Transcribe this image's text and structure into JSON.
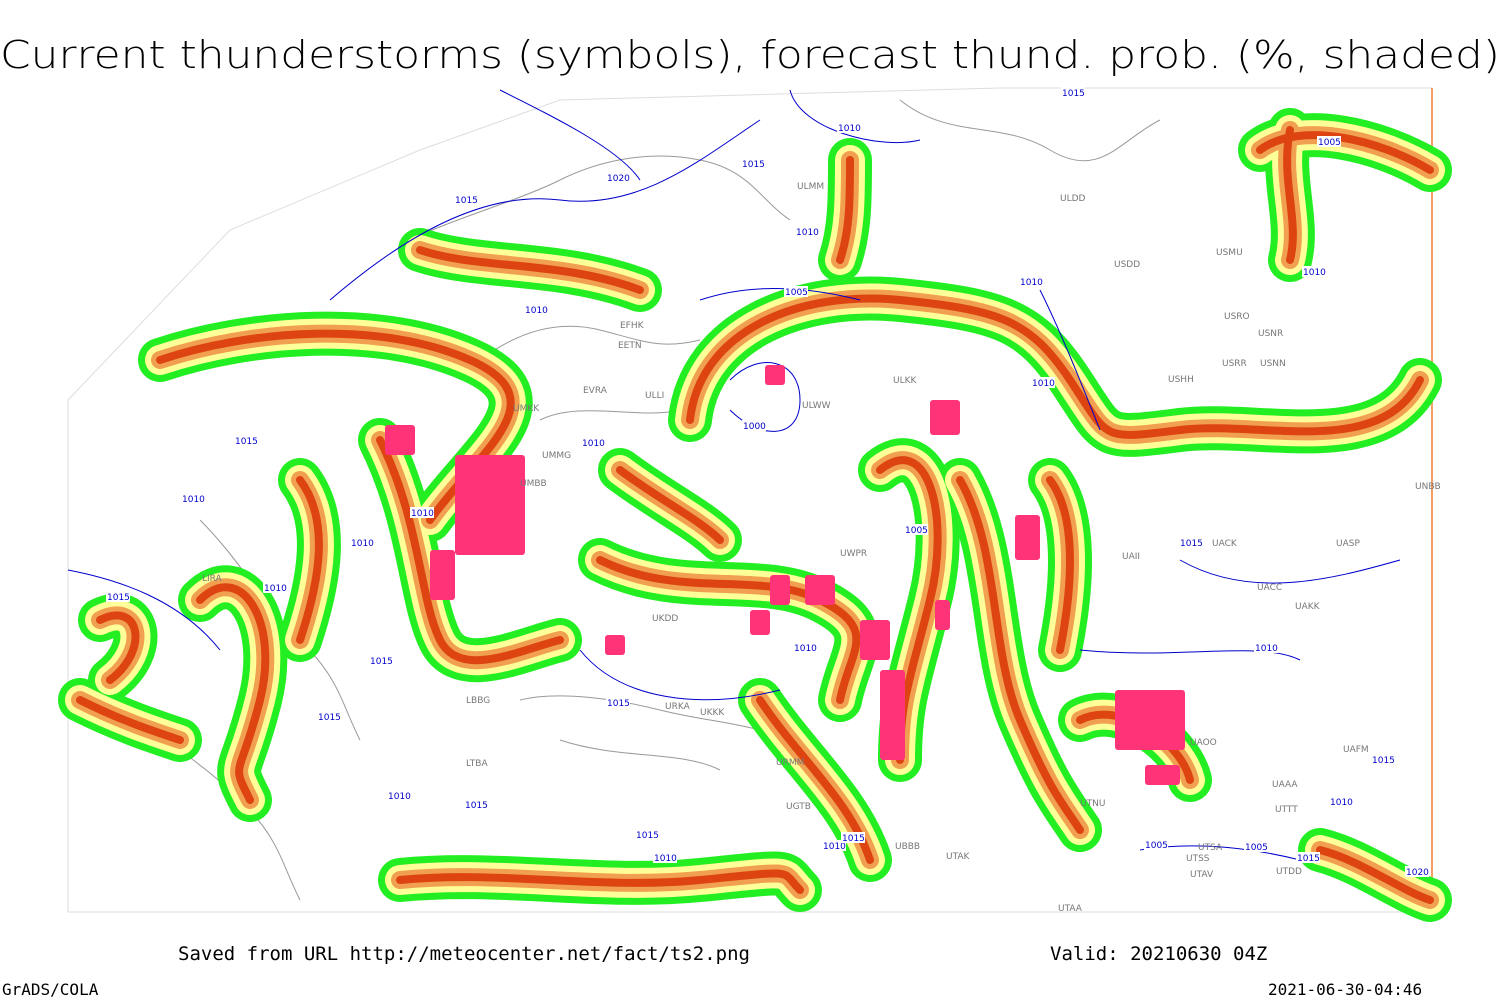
{
  "header": {
    "title": "Current thunderstorms (symbols), forecast thund. prob. (%, shaded)"
  },
  "map": {
    "stations": [
      "EFHK",
      "EETN",
      "EVRA",
      "UMKK",
      "ULLI",
      "ULWW",
      "ULKK",
      "ULDD",
      "ULMM",
      "USDD",
      "USMU",
      "USRO",
      "USNR",
      "USRR",
      "USNN",
      "USHH",
      "UNBB",
      "UACK",
      "UAII",
      "UASP",
      "UACC",
      "UAKK",
      "UWPR",
      "UKDD",
      "LIRA",
      "LBBG",
      "UKKK",
      "URKA",
      "LTBA",
      "UTAK",
      "UTAA",
      "UTSA",
      "UTSS",
      "UTDD",
      "UTAV",
      "UTNU",
      "UTTT",
      "UAAA",
      "UAFM",
      "UAOO",
      "UBBB",
      "UGTB",
      "URMM",
      "UMMG",
      "UMBB"
    ],
    "isobar_labels": [
      "1015",
      "1010",
      "1015",
      "1020",
      "1015",
      "1010",
      "1010",
      "1005",
      "1010",
      "1010",
      "1005",
      "1000",
      "1010",
      "1010",
      "1005",
      "1015",
      "1010",
      "1010",
      "1015",
      "1010",
      "1010",
      "1010",
      "1010",
      "1015",
      "1015",
      "1015",
      "1015",
      "1010",
      "1015",
      "1015",
      "1010",
      "1010",
      "1015",
      "1005",
      "1005",
      "1015",
      "1020",
      "1010",
      "1015"
    ]
  },
  "footer": {
    "saved": "Saved from URL http://meteocenter.net/fact/ts2.png",
    "valid": "Valid: 20210630 04Z",
    "software": "GrADS/COLA",
    "timestamp": "2021-06-30-04:46"
  }
}
